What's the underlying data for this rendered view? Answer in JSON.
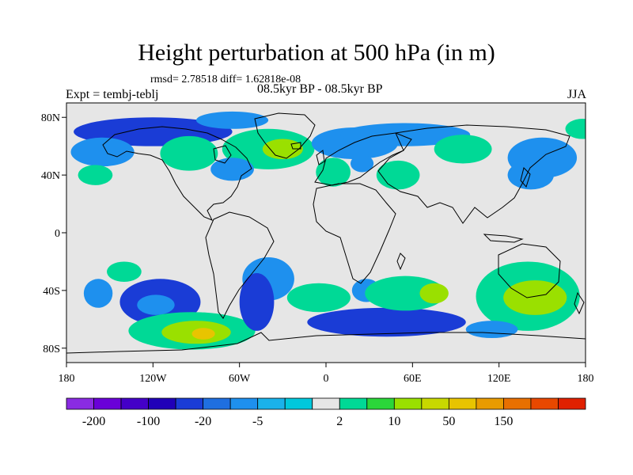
{
  "title": "Height perturbation at 500 hPa (in m)",
  "stats": "rmsd= 2.78518 diff= 1.62818e-08",
  "expt": "Expt = tembj-teblj",
  "period": "08.5kyr BP - 08.5kyr BP",
  "season": "JJA",
  "map": {
    "lon_range": [
      -180,
      180
    ],
    "lat_range": [
      -90,
      90
    ],
    "background_color": "#e6e6e6",
    "lon_ticks": [
      {
        "value": -180,
        "label": "180"
      },
      {
        "value": -120,
        "label": "120W"
      },
      {
        "value": -60,
        "label": "60W"
      },
      {
        "value": 0,
        "label": "0"
      },
      {
        "value": 60,
        "label": "60E"
      },
      {
        "value": 120,
        "label": "120E"
      },
      {
        "value": 180,
        "label": "180"
      }
    ],
    "lat_ticks": [
      {
        "value": 80,
        "label": "80N"
      },
      {
        "value": 40,
        "label": "40N"
      },
      {
        "value": 0,
        "label": "0"
      },
      {
        "value": -40,
        "label": "40S"
      },
      {
        "value": -80,
        "label": "80S"
      }
    ],
    "blobs": [
      {
        "lon": -115,
        "lat": -48,
        "rx": 28,
        "ry": 16,
        "level": "-20"
      },
      {
        "lon": -118,
        "lat": -50,
        "rx": 13,
        "ry": 7,
        "level": "-5"
      },
      {
        "lon": -158,
        "lat": -42,
        "rx": 10,
        "ry": 10,
        "level": "-5"
      },
      {
        "lon": -93,
        "lat": -68,
        "rx": 44,
        "ry": 13,
        "level": "2"
      },
      {
        "lon": -90,
        "lat": -69,
        "rx": 24,
        "ry": 8,
        "level": "10"
      },
      {
        "lon": -85,
        "lat": -70,
        "rx": 8,
        "ry": 4,
        "level": "50"
      },
      {
        "lon": -140,
        "lat": -27,
        "rx": 12,
        "ry": 7,
        "level": "2"
      },
      {
        "lon": -40,
        "lat": -32,
        "rx": 18,
        "ry": 15,
        "level": "-5"
      },
      {
        "lon": -48,
        "lat": -48,
        "rx": 12,
        "ry": 20,
        "level": "-20"
      },
      {
        "lon": -5,
        "lat": -45,
        "rx": 22,
        "ry": 10,
        "level": "2"
      },
      {
        "lon": 42,
        "lat": -62,
        "rx": 55,
        "ry": 10,
        "level": "-20"
      },
      {
        "lon": 28,
        "lat": -40,
        "rx": 10,
        "ry": 8,
        "level": "-5"
      },
      {
        "lon": 55,
        "lat": -42,
        "rx": 28,
        "ry": 12,
        "level": "2"
      },
      {
        "lon": 75,
        "lat": -42,
        "rx": 10,
        "ry": 7,
        "level": "10"
      },
      {
        "lon": 140,
        "lat": -44,
        "rx": 36,
        "ry": 24,
        "level": "2"
      },
      {
        "lon": 145,
        "lat": -45,
        "rx": 22,
        "ry": 12,
        "level": "10"
      },
      {
        "lon": 115,
        "lat": -67,
        "rx": 18,
        "ry": 6,
        "level": "-5"
      },
      {
        "lon": -120,
        "lat": 70,
        "rx": 55,
        "ry": 10,
        "level": "-20"
      },
      {
        "lon": -155,
        "lat": 56,
        "rx": 22,
        "ry": 10,
        "level": "-5"
      },
      {
        "lon": -95,
        "lat": 55,
        "rx": 20,
        "ry": 12,
        "level": "2"
      },
      {
        "lon": -40,
        "lat": 58,
        "rx": 32,
        "ry": 14,
        "level": "2"
      },
      {
        "lon": -30,
        "lat": 58,
        "rx": 14,
        "ry": 7,
        "level": "10"
      },
      {
        "lon": -65,
        "lat": 44,
        "rx": 15,
        "ry": 8,
        "level": "-5"
      },
      {
        "lon": 20,
        "lat": 62,
        "rx": 30,
        "ry": 11,
        "level": "-5"
      },
      {
        "lon": 55,
        "lat": 68,
        "rx": 45,
        "ry": 8,
        "level": "-5"
      },
      {
        "lon": 5,
        "lat": 42,
        "rx": 12,
        "ry": 10,
        "level": "2"
      },
      {
        "lon": 25,
        "lat": 48,
        "rx": 8,
        "ry": 6,
        "level": "-5"
      },
      {
        "lon": 50,
        "lat": 40,
        "rx": 15,
        "ry": 10,
        "level": "2"
      },
      {
        "lon": 95,
        "lat": 58,
        "rx": 20,
        "ry": 10,
        "level": "2"
      },
      {
        "lon": 142,
        "lat": 40,
        "rx": 16,
        "ry": 10,
        "level": "-5"
      },
      {
        "lon": 150,
        "lat": 52,
        "rx": 24,
        "ry": 14,
        "level": "-5"
      },
      {
        "lon": -160,
        "lat": 40,
        "rx": 12,
        "ry": 7,
        "level": "2"
      },
      {
        "lon": 178,
        "lat": 72,
        "rx": 12,
        "ry": 7,
        "level": "2"
      },
      {
        "lon": -65,
        "lat": 78,
        "rx": 25,
        "ry": 6,
        "level": "-5"
      }
    ]
  },
  "colorbar": {
    "colors": [
      "#8a2be2",
      "#6a00d8",
      "#4400c8",
      "#2000b8",
      "#1a3cd6",
      "#1f6fe0",
      "#1e90ee",
      "#1ab2ea",
      "#00c8dc",
      "#e6e6e6",
      "#00d996",
      "#2bd63a",
      "#9ae000",
      "#c8d800",
      "#e8c400",
      "#e89b00",
      "#e87000",
      "#e84800",
      "#e02000"
    ],
    "ticks": [
      {
        "index": 1,
        "label": "-200"
      },
      {
        "index": 3,
        "label": "-100"
      },
      {
        "index": 5,
        "label": "-20"
      },
      {
        "index": 7,
        "label": "-5"
      },
      {
        "index": 10,
        "label": "2"
      },
      {
        "index": 12,
        "label": "10"
      },
      {
        "index": 14,
        "label": "50"
      },
      {
        "index": 16,
        "label": "150"
      }
    ]
  }
}
